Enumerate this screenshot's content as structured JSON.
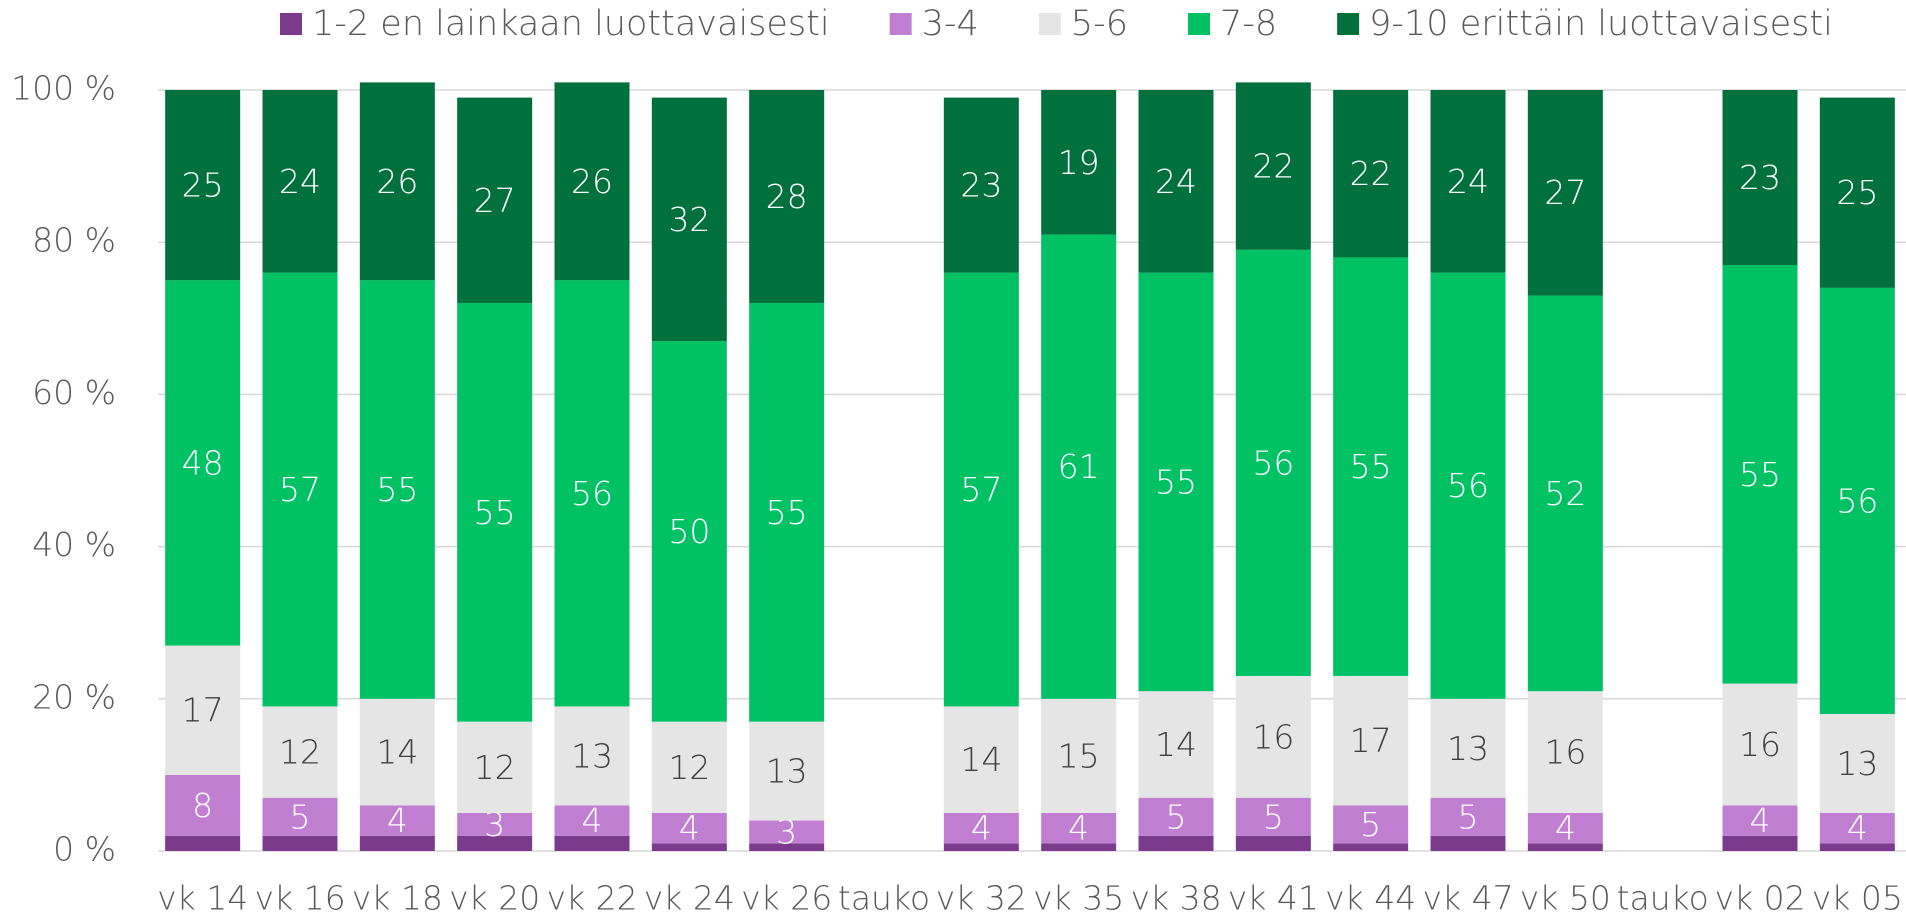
{
  "chart_data": {
    "type": "stacked_bar",
    "categories": [
      "vk 14",
      "vk 16",
      "vk 18",
      "vk 20",
      "vk 22",
      "vk 24",
      "vk 26",
      "tauko",
      "vk 32",
      "vk 35",
      "vk 38",
      "vk 41",
      "vk 44",
      "vk 47",
      "vk 50",
      "tauko",
      "vk 02",
      "vk 05"
    ],
    "series": [
      {
        "name": "1-2 en lainkaan luottavaisesti",
        "color": "#7b3a8c",
        "data_labels": false,
        "label_color": "#ffffff",
        "values": [
          2,
          2,
          2,
          2,
          2,
          1,
          1,
          null,
          1,
          1,
          2,
          2,
          1,
          2,
          1,
          null,
          2,
          1
        ]
      },
      {
        "name": "3-4",
        "color": "#c17fd1",
        "data_labels": true,
        "label_color": "#ffffff",
        "values": [
          8,
          5,
          4,
          3,
          4,
          4,
          3,
          null,
          4,
          4,
          5,
          5,
          5,
          5,
          4,
          null,
          4,
          4
        ]
      },
      {
        "name": "5-6",
        "color": "#e5e5e5",
        "data_labels": true,
        "label_color": "#404040",
        "values": [
          17,
          12,
          14,
          12,
          13,
          12,
          13,
          null,
          14,
          15,
          14,
          16,
          17,
          13,
          16,
          null,
          16,
          13
        ]
      },
      {
        "name": "7-8",
        "color": "#00c264",
        "data_labels": true,
        "label_color": "#ffffff",
        "values": [
          48,
          57,
          55,
          55,
          56,
          50,
          55,
          null,
          57,
          61,
          55,
          56,
          55,
          56,
          52,
          null,
          55,
          56
        ]
      },
      {
        "name": "9-10 erittäin luottavaisesti",
        "color": "#00703c",
        "data_labels": true,
        "label_color": "#ffffff",
        "values": [
          25,
          24,
          26,
          27,
          26,
          32,
          28,
          null,
          23,
          19,
          24,
          22,
          22,
          24,
          27,
          null,
          23,
          25
        ]
      }
    ],
    "ylim": [
      0,
      100
    ],
    "yticks": [
      {
        "value": 0,
        "label": "0 %"
      },
      {
        "value": 20,
        "label": "20 %"
      },
      {
        "value": 40,
        "label": "40 %"
      },
      {
        "value": 60,
        "label": "60 %"
      },
      {
        "value": 80,
        "label": "80 %"
      },
      {
        "value": 100,
        "label": "100 %"
      }
    ],
    "grid": true,
    "legend": "top"
  }
}
